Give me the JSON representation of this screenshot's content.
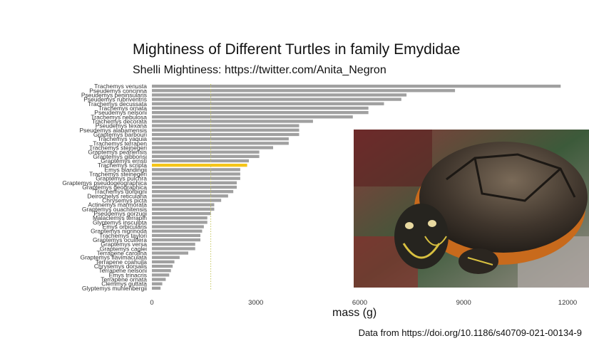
{
  "title": "Mightiness of Different Turtles in family Emydidae",
  "subtitle": "Shelli Mightiness: https://twitter.com/Anita_Negron",
  "caption": "Data from https://doi.org/10.1186/s40709-021-00134-9",
  "colors": {
    "bar": "#a0a0a0",
    "highlight": "#f5c518",
    "reference_line": "#c8c860",
    "axis_text": "#333333"
  },
  "photo": {
    "subject": "turtle-photo"
  },
  "chart_data": {
    "type": "bar",
    "orientation": "horizontal",
    "xlabel": "mass (g)",
    "xlim": [
      0,
      12500
    ],
    "xticks": [
      0,
      3000,
      6000,
      9000,
      12000
    ],
    "highlight_category": "Trachemys scripta",
    "reference_line": 1700,
    "categories": [
      "Trachemys venusta",
      "Pseudemys concinna",
      "Pseudemys peninsularis",
      "Pseudemys rubriventris",
      "Trachemys decussata",
      "Trachemys ornata",
      "Pseudemys nelsoni",
      "Trachemys nebulosa",
      "Trachemys decorata",
      "Pseudemys texana",
      "Pseudemys alabamensis",
      "Graptemys barbouri",
      "Trachemys yaquia",
      "Trachemys terrapen",
      "Trachemys stejnegeri",
      "Graptemys pearlensis",
      "Graptemys gibbonsi",
      "Graptemys ernsti",
      "Trachemys scripta",
      "Emys blandingii",
      "Trachemys steinegeri",
      "Graptemys pulchra",
      "Graptemys pseudogeographica",
      "Graptemys geographica",
      "Trachemys dorbigni",
      "Deirochelys reticularia",
      "Chrysemys picta",
      "Actinemys marmorata",
      "Graptemys ouachitensis",
      "Pseudemys gorzugi",
      "Malaclemys terrapin",
      "Glyptemys insculpta",
      "Emys orbicularis",
      "Graptemys nigrinoda",
      "Trachemys taylori",
      "Graptemys oculifera",
      "Graptemys versa",
      "Graptemys caglei",
      "Terrapene carolina",
      "Graptemys flavimaculata",
      "Terrapene coahuila",
      "Chrysemys dorsalis",
      "Terrapene nelsoni",
      "Emys trinacris",
      "Terrapene ornata",
      "Clemmys guttata",
      "Glyptemys muhlenbergii"
    ],
    "values": [
      11800,
      8750,
      7350,
      7200,
      6700,
      6250,
      6250,
      5800,
      4650,
      4250,
      4250,
      4250,
      3950,
      3950,
      3500,
      3100,
      3100,
      2800,
      2750,
      2550,
      2550,
      2550,
      2450,
      2450,
      2350,
      2200,
      2000,
      1800,
      1800,
      1700,
      1600,
      1600,
      1500,
      1450,
      1400,
      1400,
      1250,
      1250,
      1050,
      800,
      650,
      600,
      550,
      500,
      400,
      300,
      250
    ]
  }
}
